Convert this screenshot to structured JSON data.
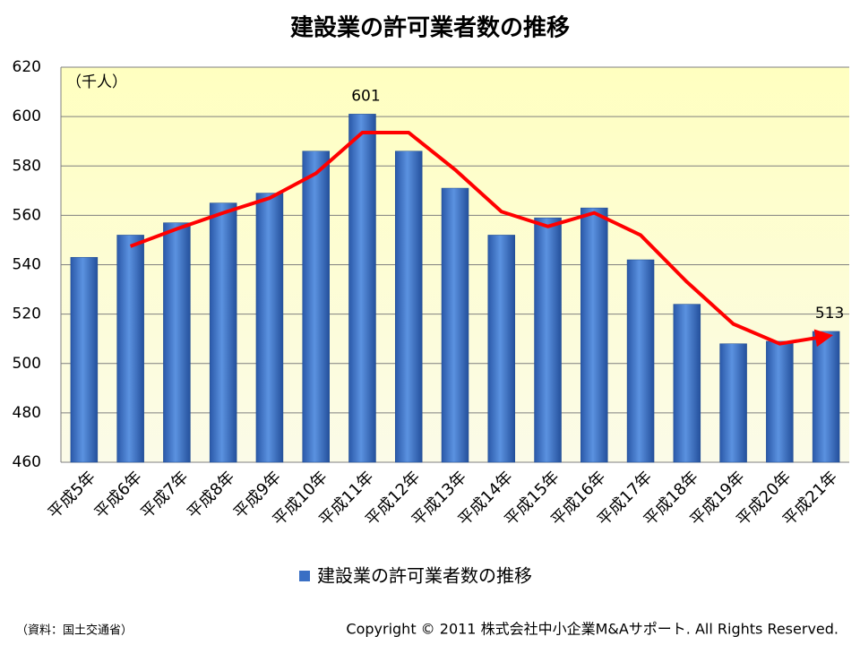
{
  "chart_data": {
    "type": "bar",
    "title": "建設業の許可業者数の推移",
    "unit_label": "（千人）",
    "categories": [
      "平成5年",
      "平成6年",
      "平成7年",
      "平成8年",
      "平成9年",
      "平成10年",
      "平成11年",
      "平成12年",
      "平成13年",
      "平成14年",
      "平成15年",
      "平成16年",
      "平成17年",
      "平成18年",
      "平成19年",
      "平成20年",
      "平成21年"
    ],
    "series": [
      {
        "name": "建設業の許可業者数の推移",
        "color": "#3a6fc4",
        "values": [
          543,
          552,
          557,
          565,
          569,
          586,
          601,
          586,
          571,
          552,
          559,
          563,
          542,
          524,
          508,
          509,
          513
        ],
        "value_labels": [
          null,
          null,
          null,
          null,
          null,
          null,
          "601",
          null,
          null,
          null,
          null,
          null,
          null,
          null,
          null,
          null,
          "513"
        ]
      },
      {
        "type": "line",
        "color": "#ff0000",
        "values": [
          null,
          547.5,
          554.5,
          561,
          567,
          577,
          593.5,
          593.5,
          578.5,
          561.5,
          555.5,
          561,
          552,
          533,
          516,
          508,
          511
        ]
      }
    ],
    "ylim": [
      460,
      620
    ],
    "yticks": [
      460,
      480,
      500,
      520,
      540,
      560,
      580,
      600,
      620
    ],
    "grid": true,
    "source": "（資料：国土交通省）",
    "copyright": "Copyright © 2011 株式会社中小企業M&Aサポート. All Rights Reserved."
  }
}
